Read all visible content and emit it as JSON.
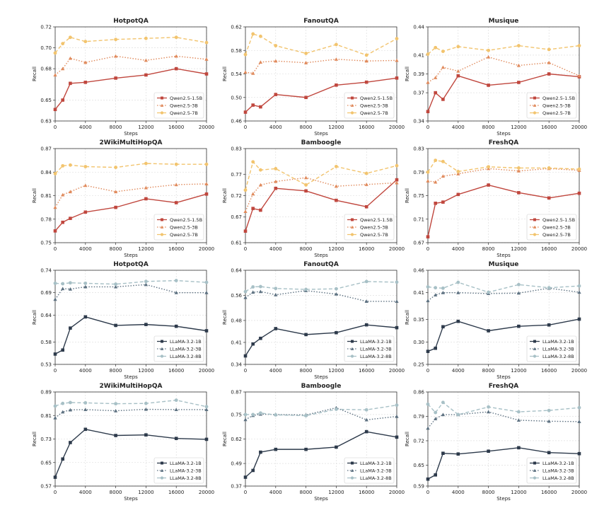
{
  "figure": {
    "xlabel": "Steps",
    "ylabel": "Recall",
    "xticks": [
      0,
      4000,
      8000,
      12000,
      16000,
      20000
    ],
    "x_steps": [
      0,
      1000,
      2000,
      4000,
      8000,
      12000,
      16000,
      20000
    ]
  },
  "chart_data": [
    {
      "type": "line",
      "title": "HotpotQA",
      "xlabel": "Steps",
      "ylabel": "Recall",
      "x": [
        0,
        1000,
        2000,
        4000,
        8000,
        12000,
        16000,
        20000
      ],
      "ylim": [
        0.63,
        0.72
      ],
      "yticks": [
        "0.63",
        "0.65",
        "0.68",
        "0.70",
        "0.72"
      ],
      "legend_position": "bottom-right",
      "series": [
        {
          "name": "Qwen2.5-1.5B",
          "color": "#c0473e",
          "marker": "square",
          "dash": "solid",
          "values": [
            0.641,
            0.65,
            0.666,
            0.667,
            0.671,
            0.674,
            0.68,
            0.675
          ]
        },
        {
          "name": "Qwen2.5-3B",
          "color": "#e08a5c",
          "marker": "triangle",
          "dash": "dotted",
          "values": [
            0.674,
            0.68,
            0.69,
            0.686,
            0.692,
            0.688,
            0.692,
            0.689
          ]
        },
        {
          "name": "Qwen2.5-7B",
          "color": "#f2c46e",
          "marker": "circle",
          "dash": "dashed",
          "values": [
            0.695,
            0.704,
            0.71,
            0.706,
            0.708,
            0.709,
            0.71,
            0.705
          ]
        }
      ]
    },
    {
      "type": "line",
      "title": "FanoutQA",
      "xlabel": "Steps",
      "ylabel": "Recall",
      "x": [
        0,
        1000,
        2000,
        4000,
        8000,
        12000,
        16000,
        20000
      ],
      "ylim": [
        0.46,
        0.62
      ],
      "yticks": [
        "0.46",
        "0.50",
        "0.54",
        "0.58",
        "0.62"
      ],
      "legend_position": "bottom-right",
      "series": [
        {
          "name": "Qwen2.5-1.5B",
          "color": "#c0473e",
          "marker": "square",
          "dash": "solid",
          "values": [
            0.475,
            0.487,
            0.484,
            0.505,
            0.5,
            0.521,
            0.526,
            0.533
          ]
        },
        {
          "name": "Qwen2.5-3B",
          "color": "#e08a5c",
          "marker": "triangle",
          "dash": "dotted",
          "values": [
            0.543,
            0.541,
            0.56,
            0.562,
            0.559,
            0.565,
            0.562,
            0.563
          ]
        },
        {
          "name": "Qwen2.5-7B",
          "color": "#f2c46e",
          "marker": "circle",
          "dash": "dashed",
          "values": [
            0.573,
            0.608,
            0.604,
            0.588,
            0.575,
            0.59,
            0.572,
            0.6
          ]
        }
      ]
    },
    {
      "type": "line",
      "title": "Musique",
      "xlabel": "Steps",
      "ylabel": "Recall",
      "x": [
        0,
        1000,
        2000,
        4000,
        8000,
        12000,
        16000,
        20000
      ],
      "ylim": [
        0.34,
        0.44
      ],
      "yticks": [
        "0.34",
        "0.37",
        "0.39",
        "0.41",
        "0.44"
      ],
      "legend_position": "bottom-right",
      "series": [
        {
          "name": "Qwen2.5-1.5B",
          "color": "#c0473e",
          "marker": "square",
          "dash": "solid",
          "values": [
            0.35,
            0.37,
            0.363,
            0.388,
            0.378,
            0.381,
            0.39,
            0.387
          ]
        },
        {
          "name": "Qwen2.5-3B",
          "color": "#e08a5c",
          "marker": "triangle",
          "dash": "dotted",
          "values": [
            0.381,
            0.386,
            0.397,
            0.393,
            0.408,
            0.399,
            0.402,
            0.388
          ]
        },
        {
          "name": "Qwen2.5-7B",
          "color": "#f2c46e",
          "marker": "circle",
          "dash": "dashed",
          "values": [
            0.411,
            0.418,
            0.414,
            0.419,
            0.415,
            0.42,
            0.416,
            0.42
          ]
        }
      ]
    },
    {
      "type": "line",
      "title": "2WikiMultiHopQA",
      "xlabel": "Steps",
      "ylabel": "Recall",
      "x": [
        0,
        1000,
        2000,
        4000,
        8000,
        12000,
        16000,
        20000
      ],
      "ylim": [
        0.75,
        0.87
      ],
      "yticks": [
        "0.75",
        "0.78",
        "0.81",
        "0.84",
        "0.87"
      ],
      "legend_position": "bottom-right",
      "series": [
        {
          "name": "Qwen2.5-1.5B",
          "color": "#c0473e",
          "marker": "square",
          "dash": "solid",
          "values": [
            0.765,
            0.776,
            0.781,
            0.789,
            0.795,
            0.806,
            0.801,
            0.812
          ]
        },
        {
          "name": "Qwen2.5-3B",
          "color": "#e08a5c",
          "marker": "triangle",
          "dash": "dotted",
          "values": [
            0.795,
            0.811,
            0.815,
            0.823,
            0.815,
            0.82,
            0.824,
            0.825
          ]
        },
        {
          "name": "Qwen2.5-7B",
          "color": "#f2c46e",
          "marker": "circle",
          "dash": "dashed",
          "values": [
            0.838,
            0.848,
            0.849,
            0.847,
            0.846,
            0.851,
            0.85,
            0.85
          ]
        }
      ]
    },
    {
      "type": "line",
      "title": "Bamboogle",
      "xlabel": "Steps",
      "ylabel": "Recall",
      "x": [
        0,
        1000,
        2000,
        4000,
        8000,
        12000,
        16000,
        20000
      ],
      "ylim": [
        0.61,
        0.83
      ],
      "yticks": [
        "0.61",
        "0.67",
        "0.72",
        "0.77",
        "0.83"
      ],
      "legend_position": "bottom-right",
      "series": [
        {
          "name": "Qwen2.5-1.5B",
          "color": "#c0473e",
          "marker": "square",
          "dash": "solid",
          "values": [
            0.637,
            0.69,
            0.686,
            0.737,
            0.731,
            0.709,
            0.694,
            0.757
          ]
        },
        {
          "name": "Qwen2.5-3B",
          "color": "#e08a5c",
          "marker": "triangle",
          "dash": "dotted",
          "values": [
            0.683,
            0.724,
            0.745,
            0.753,
            0.762,
            0.742,
            0.746,
            0.75
          ]
        },
        {
          "name": "Qwen2.5-7B",
          "color": "#f2c46e",
          "marker": "circle",
          "dash": "dashed",
          "values": [
            0.733,
            0.799,
            0.78,
            0.783,
            0.745,
            0.788,
            0.772,
            0.79
          ]
        }
      ]
    },
    {
      "type": "line",
      "title": "FreshQA",
      "xlabel": "Steps",
      "ylabel": "Recall",
      "x": [
        0,
        1000,
        2000,
        4000,
        8000,
        12000,
        16000,
        20000
      ],
      "ylim": [
        0.67,
        0.83
      ],
      "yticks": [
        "0.67",
        "0.71",
        "0.75",
        "0.79",
        "0.83"
      ],
      "legend_position": "bottom-right",
      "series": [
        {
          "name": "Qwen2.5-1.5B",
          "color": "#c0473e",
          "marker": "square",
          "dash": "solid",
          "values": [
            0.68,
            0.737,
            0.739,
            0.752,
            0.768,
            0.755,
            0.746,
            0.754
          ]
        },
        {
          "name": "Qwen2.5-3B",
          "color": "#e08a5c",
          "marker": "triangle",
          "dash": "dotted",
          "values": [
            0.775,
            0.773,
            0.783,
            0.787,
            0.796,
            0.792,
            0.796,
            0.793
          ]
        },
        {
          "name": "Qwen2.5-7B",
          "color": "#f2c46e",
          "marker": "circle",
          "dash": "dashed",
          "values": [
            0.79,
            0.81,
            0.808,
            0.791,
            0.799,
            0.797,
            0.797,
            0.795
          ]
        }
      ]
    },
    {
      "type": "line",
      "title": "HotpotQA",
      "xlabel": "Steps",
      "ylabel": "Recall",
      "x": [
        0,
        1000,
        2000,
        4000,
        8000,
        12000,
        16000,
        20000
      ],
      "ylim": [
        0.53,
        0.74
      ],
      "yticks": [
        "0.53",
        "0.58",
        "0.64",
        "0.69",
        "0.74"
      ],
      "legend_position": "bottom-right",
      "series": [
        {
          "name": "LLaMA-3.2-1B",
          "color": "#2d3a4b",
          "marker": "square",
          "dash": "solid",
          "values": [
            0.553,
            0.562,
            0.611,
            0.636,
            0.617,
            0.619,
            0.615,
            0.605
          ]
        },
        {
          "name": "LLaMA-3.2-3B",
          "color": "#5d7181",
          "marker": "triangle",
          "dash": "dotted",
          "values": [
            0.675,
            0.699,
            0.698,
            0.703,
            0.703,
            0.708,
            0.69,
            0.69
          ]
        },
        {
          "name": "LLaMA-3.2-8B",
          "color": "#a7c0c6",
          "marker": "circle",
          "dash": "dashed",
          "values": [
            0.711,
            0.71,
            0.712,
            0.711,
            0.709,
            0.715,
            0.717,
            0.713
          ]
        }
      ]
    },
    {
      "type": "line",
      "title": "FanoutQA",
      "xlabel": "Steps",
      "ylabel": "Recall",
      "x": [
        0,
        1000,
        2000,
        4000,
        8000,
        12000,
        16000,
        20000
      ],
      "ylim": [
        0.34,
        0.64
      ],
      "yticks": [
        "0.34",
        "0.41",
        "0.48",
        "0.56",
        "0.64"
      ],
      "legend_position": "bottom-right",
      "series": [
        {
          "name": "LLaMA-3.2-1B",
          "color": "#2d3a4b",
          "marker": "square",
          "dash": "solid",
          "values": [
            0.367,
            0.405,
            0.423,
            0.454,
            0.435,
            0.441,
            0.466,
            0.457
          ]
        },
        {
          "name": "LLaMA-3.2-3B",
          "color": "#5d7181",
          "marker": "triangle",
          "dash": "dotted",
          "values": [
            0.553,
            0.57,
            0.572,
            0.562,
            0.575,
            0.564,
            0.541,
            0.541
          ]
        },
        {
          "name": "LLaMA-3.2-8B",
          "color": "#a7c0c6",
          "marker": "circle",
          "dash": "dashed",
          "values": [
            0.572,
            0.587,
            0.588,
            0.582,
            0.579,
            0.581,
            0.604,
            0.602
          ]
        }
      ]
    },
    {
      "type": "line",
      "title": "Musique",
      "xlabel": "Steps",
      "ylabel": "Recall",
      "x": [
        0,
        1000,
        2000,
        4000,
        8000,
        12000,
        16000,
        20000
      ],
      "ylim": [
        0.25,
        0.46
      ],
      "yticks": [
        "0.25",
        "0.30",
        "0.35",
        "0.41",
        "0.46"
      ],
      "legend_position": "bottom-right",
      "series": [
        {
          "name": "LLaMA-3.2-1B",
          "color": "#2d3a4b",
          "marker": "square",
          "dash": "solid",
          "values": [
            0.279,
            0.286,
            0.334,
            0.346,
            0.325,
            0.335,
            0.338,
            0.351
          ]
        },
        {
          "name": "LLaMA-3.2-3B",
          "color": "#5d7181",
          "marker": "triangle",
          "dash": "dotted",
          "values": [
            0.392,
            0.405,
            0.41,
            0.41,
            0.408,
            0.409,
            0.42,
            0.411
          ]
        },
        {
          "name": "LLaMA-3.2-8B",
          "color": "#a7c0c6",
          "marker": "circle",
          "dash": "dashed",
          "values": [
            0.423,
            0.421,
            0.42,
            0.433,
            0.411,
            0.428,
            0.421,
            0.425
          ]
        }
      ]
    },
    {
      "type": "line",
      "title": "2WikiMultiHopQA",
      "xlabel": "Steps",
      "ylabel": "Recall",
      "x": [
        0,
        1000,
        2000,
        4000,
        8000,
        12000,
        16000,
        20000
      ],
      "ylim": [
        0.57,
        0.89
      ],
      "yticks": [
        "0.57",
        "0.65",
        "0.73",
        "0.81",
        "0.89"
      ],
      "legend_position": "bottom-right",
      "series": [
        {
          "name": "LLaMA-3.2-1B",
          "color": "#2d3a4b",
          "marker": "square",
          "dash": "solid",
          "values": [
            0.6,
            0.662,
            0.718,
            0.763,
            0.742,
            0.744,
            0.732,
            0.729
          ]
        },
        {
          "name": "LLaMA-3.2-3B",
          "color": "#5d7181",
          "marker": "triangle",
          "dash": "dotted",
          "values": [
            0.802,
            0.822,
            0.829,
            0.83,
            0.826,
            0.831,
            0.83,
            0.83
          ]
        },
        {
          "name": "LLaMA-3.2-8B",
          "color": "#a7c0c6",
          "marker": "circle",
          "dash": "dashed",
          "values": [
            0.842,
            0.851,
            0.854,
            0.853,
            0.85,
            0.851,
            0.862,
            0.84
          ]
        }
      ]
    },
    {
      "type": "line",
      "title": "Bamboogle",
      "xlabel": "Steps",
      "ylabel": "Recall",
      "x": [
        0,
        1000,
        2000,
        4000,
        8000,
        12000,
        16000,
        20000
      ],
      "ylim": [
        0.37,
        0.87
      ],
      "yticks": [
        "0.37",
        "0.49",
        "0.62",
        "0.75",
        "0.87"
      ],
      "legend_position": "bottom-right",
      "series": [
        {
          "name": "LLaMA-3.2-1B",
          "color": "#2d3a4b",
          "marker": "square",
          "dash": "solid",
          "values": [
            0.417,
            0.453,
            0.55,
            0.565,
            0.565,
            0.577,
            0.659,
            0.63
          ]
        },
        {
          "name": "LLaMA-3.2-3B",
          "color": "#5d7181",
          "marker": "triangle",
          "dash": "dotted",
          "values": [
            0.723,
            0.745,
            0.752,
            0.75,
            0.748,
            0.786,
            0.722,
            0.74
          ]
        },
        {
          "name": "LLaMA-3.2-8B",
          "color": "#a7c0c6",
          "marker": "circle",
          "dash": "dashed",
          "values": [
            0.75,
            0.75,
            0.758,
            0.748,
            0.744,
            0.778,
            0.775,
            0.8
          ]
        }
      ]
    },
    {
      "type": "line",
      "title": "FreshQA",
      "xlabel": "Steps",
      "ylabel": "Recall",
      "x": [
        0,
        1000,
        2000,
        4000,
        8000,
        12000,
        16000,
        20000
      ],
      "ylim": [
        0.59,
        0.86
      ],
      "yticks": [
        "0.59",
        "0.65",
        "0.72",
        "0.79",
        "0.86"
      ],
      "legend_position": "bottom-right",
      "series": [
        {
          "name": "LLaMA-3.2-1B",
          "color": "#2d3a4b",
          "marker": "square",
          "dash": "solid",
          "values": [
            0.61,
            0.622,
            0.684,
            0.682,
            0.69,
            0.7,
            0.686,
            0.683
          ]
        },
        {
          "name": "LLaMA-3.2-3B",
          "color": "#5d7181",
          "marker": "triangle",
          "dash": "dotted",
          "values": [
            0.756,
            0.783,
            0.795,
            0.795,
            0.803,
            0.779,
            0.776,
            0.775
          ]
        },
        {
          "name": "LLaMA-3.2-8B",
          "color": "#a7c0c6",
          "marker": "circle",
          "dash": "dashed",
          "values": [
            0.825,
            0.801,
            0.83,
            0.795,
            0.817,
            0.803,
            0.807,
            0.815
          ]
        }
      ]
    }
  ]
}
